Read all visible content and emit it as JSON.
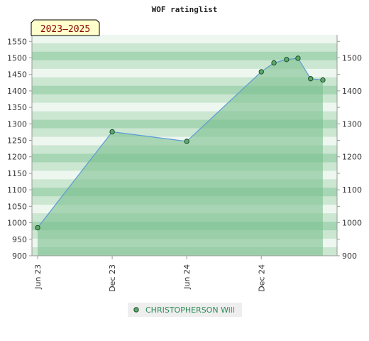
{
  "chart_data": {
    "type": "area",
    "title": "WOF ratinglist",
    "period_label": "2023–2025",
    "xlabel": "",
    "ylabel": "",
    "y_ticks": [
      900,
      950,
      1000,
      1050,
      1100,
      1150,
      1200,
      1250,
      1300,
      1350,
      1400,
      1450,
      1500,
      1550
    ],
    "y_ticks_right": [
      900,
      1000,
      1100,
      1200,
      1300,
      1400,
      1500
    ],
    "x_ticks": [
      {
        "date": "2023-06-01",
        "label": "Jun 23"
      },
      {
        "date": "2023-12-01",
        "label": "Dec 23"
      },
      {
        "date": "2024-06-01",
        "label": "Jun 24"
      },
      {
        "date": "2024-12-01",
        "label": "Dec 24"
      }
    ],
    "x_range": [
      "2023-06-01",
      "2025-05-15"
    ],
    "y_range": [
      900,
      1570
    ],
    "grid": true,
    "legend_position": "bottom-center",
    "series": [
      {
        "name": "CHRISTOPHERSON Will",
        "points": [
          {
            "x": "2023-06-01",
            "y": 985
          },
          {
            "x": "2023-12-01",
            "y": 1276
          },
          {
            "x": "2024-06-01",
            "y": 1247
          },
          {
            "x": "2024-12-01",
            "y": 1458
          },
          {
            "x": "2025-01-01",
            "y": 1485
          },
          {
            "x": "2025-02-01",
            "y": 1495
          },
          {
            "x": "2025-03-01",
            "y": 1499
          },
          {
            "x": "2025-04-01",
            "y": 1437
          },
          {
            "x": "2025-05-01",
            "y": 1433
          }
        ]
      }
    ]
  },
  "colors": {
    "area_fill": "#7cc08f",
    "line": "#5b9bd5",
    "marker_fill": "#5aaa6a",
    "marker_stroke": "#1f4d2a",
    "band_light": "#eef7ef",
    "band_mid": "#cbe6d1",
    "band_dark": "#a6d6b3",
    "badge_bg": "#ffffcc",
    "legend_bg": "#eeeeee",
    "legend_text": "#2e8b57"
  }
}
